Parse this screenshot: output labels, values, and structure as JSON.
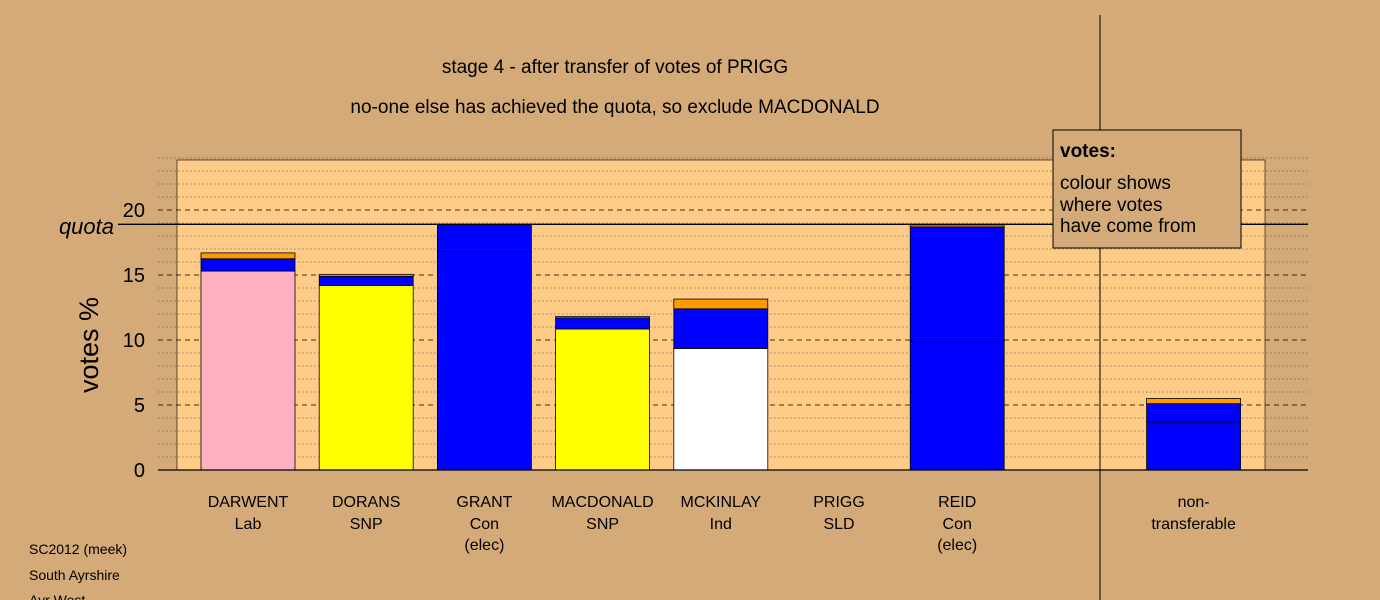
{
  "title": "stage 4 - after transfer of votes of PRIGG",
  "subtitle": "no-one else has achieved the quota, so exclude MACDONALD",
  "footer": [
    "SC2012 (meek)",
    "South Ayrshire",
    "Ayr West"
  ],
  "legend": {
    "heading": "votes:",
    "lines": [
      "colour shows",
      "where votes",
      "have come from"
    ]
  },
  "colors": {
    "background": "#d4aa78",
    "plot": "#ffcc88",
    "Lab": "#ffb0c0",
    "SNP": "#ffff00",
    "Con": "#0000ff",
    "Ind": "#ffffff",
    "SLD": "#ff9900"
  },
  "chart_data": {
    "type": "bar",
    "stacked": true,
    "ylabel": "votes %",
    "ylim": [
      0,
      24
    ],
    "yticks": [
      0,
      5,
      10,
      15,
      20
    ],
    "quota": 18.9,
    "quota_label": "quota",
    "grid": true,
    "categories": [
      {
        "name": "DARWENT",
        "party": "Lab",
        "note": ""
      },
      {
        "name": "DORANS",
        "party": "SNP",
        "note": ""
      },
      {
        "name": "GRANT",
        "party": "Con",
        "note": "(elec)"
      },
      {
        "name": "MACDONALD",
        "party": "SNP",
        "note": ""
      },
      {
        "name": "MCKINLAY",
        "party": "Ind",
        "note": ""
      },
      {
        "name": "PRIGG",
        "party": "SLD",
        "note": ""
      },
      {
        "name": "REID",
        "party": "Con",
        "note": "(elec)"
      },
      {
        "name": "non-",
        "party": "transferable",
        "note": ""
      }
    ],
    "bars": [
      [
        {
          "color": "#ffb0c0",
          "value": 15.3
        },
        {
          "color": "#0000ff",
          "value": 0.95
        },
        {
          "color": "#ff9900",
          "value": 0.45
        }
      ],
      [
        {
          "color": "#ffff00",
          "value": 14.2
        },
        {
          "color": "#0000ff",
          "value": 0.7
        },
        {
          "color": "#ff9900",
          "value": 0.15
        }
      ],
      [
        {
          "color": "#0000ff",
          "value": 16.8
        },
        {
          "color": "#0000ff",
          "value": 2.1
        }
      ],
      [
        {
          "color": "#ffff00",
          "value": 10.85
        },
        {
          "color": "#0000ff",
          "value": 0.85
        },
        {
          "color": "#ff9900",
          "value": 0.1
        }
      ],
      [
        {
          "color": "#ffffff",
          "value": 9.35
        },
        {
          "color": "#0000ff",
          "value": 3.05
        },
        {
          "color": "#ff9900",
          "value": 0.75
        }
      ],
      [],
      [
        {
          "color": "#0000ff",
          "value": 9.9
        },
        {
          "color": "#0000ff",
          "value": 8.8
        },
        {
          "color": "#ff9900",
          "value": 0.15
        }
      ],
      [
        {
          "color": "#0000ff",
          "value": 3.7
        },
        {
          "color": "#0000ff",
          "value": 1.4
        },
        {
          "color": "#ff9900",
          "value": 0.4
        }
      ]
    ]
  }
}
